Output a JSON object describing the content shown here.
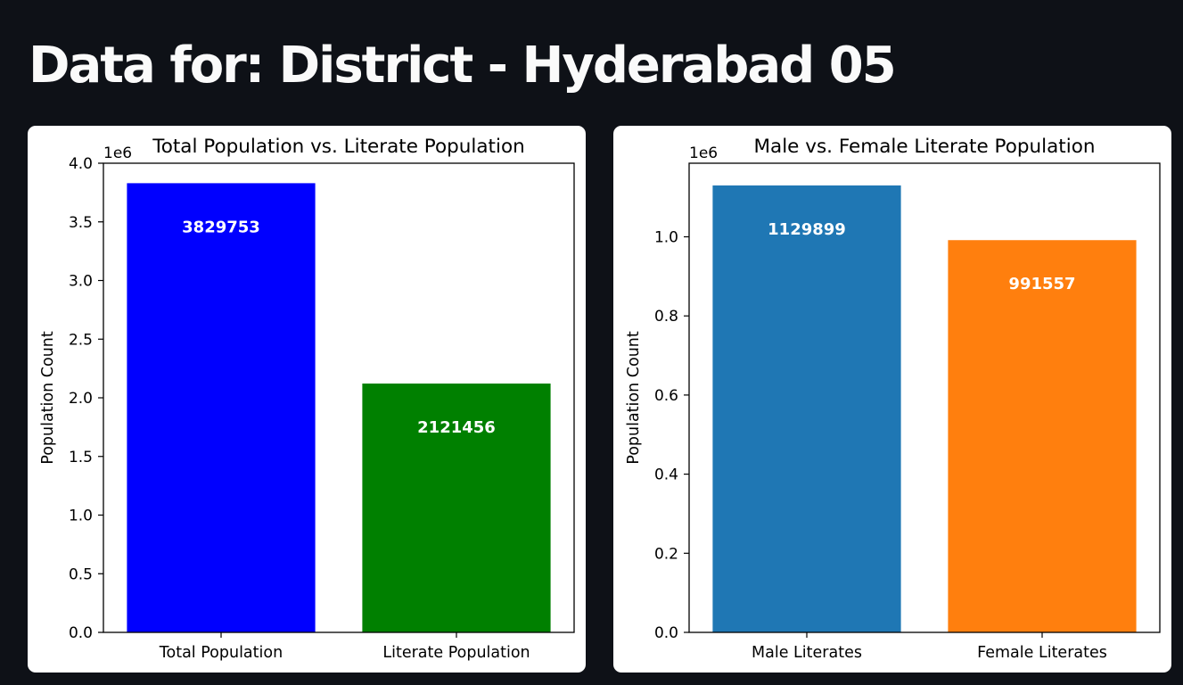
{
  "page": {
    "title": "Data for: District - Hyderabad 05"
  },
  "chart_data": [
    {
      "type": "bar",
      "title": "Total Population vs. Literate Population",
      "xlabel": "",
      "ylabel": "Population Count",
      "scale_label": "1e6",
      "categories": [
        "Total Population",
        "Literate Population"
      ],
      "values": [
        3829753,
        2121456
      ],
      "value_labels": [
        "3829753",
        "2121456"
      ],
      "colors": [
        "#0000ff",
        "#008000"
      ],
      "ylim": [
        0,
        4.0
      ],
      "yticks": [
        "0.0",
        "0.5",
        "1.0",
        "1.5",
        "2.0",
        "2.5",
        "3.0",
        "3.5",
        "4.0"
      ],
      "ytick_values": [
        0,
        0.5,
        1.0,
        1.5,
        2.0,
        2.5,
        3.0,
        3.5,
        4.0
      ],
      "grid": false
    },
    {
      "type": "bar",
      "title": "Male vs. Female Literate Population",
      "xlabel": "",
      "ylabel": "Population Count",
      "scale_label": "1e6",
      "categories": [
        "Male Literates",
        "Female Literates"
      ],
      "values": [
        1129899,
        991557
      ],
      "value_labels": [
        "1129899",
        "991557"
      ],
      "colors": [
        "#1f77b4",
        "#ff7f0e"
      ],
      "ylim": [
        0,
        1.186
      ],
      "yticks": [
        "0.0",
        "0.2",
        "0.4",
        "0.6",
        "0.8",
        "1.0"
      ],
      "ytick_values": [
        0,
        0.2,
        0.4,
        0.6,
        0.8,
        1.0
      ],
      "grid": false
    }
  ]
}
